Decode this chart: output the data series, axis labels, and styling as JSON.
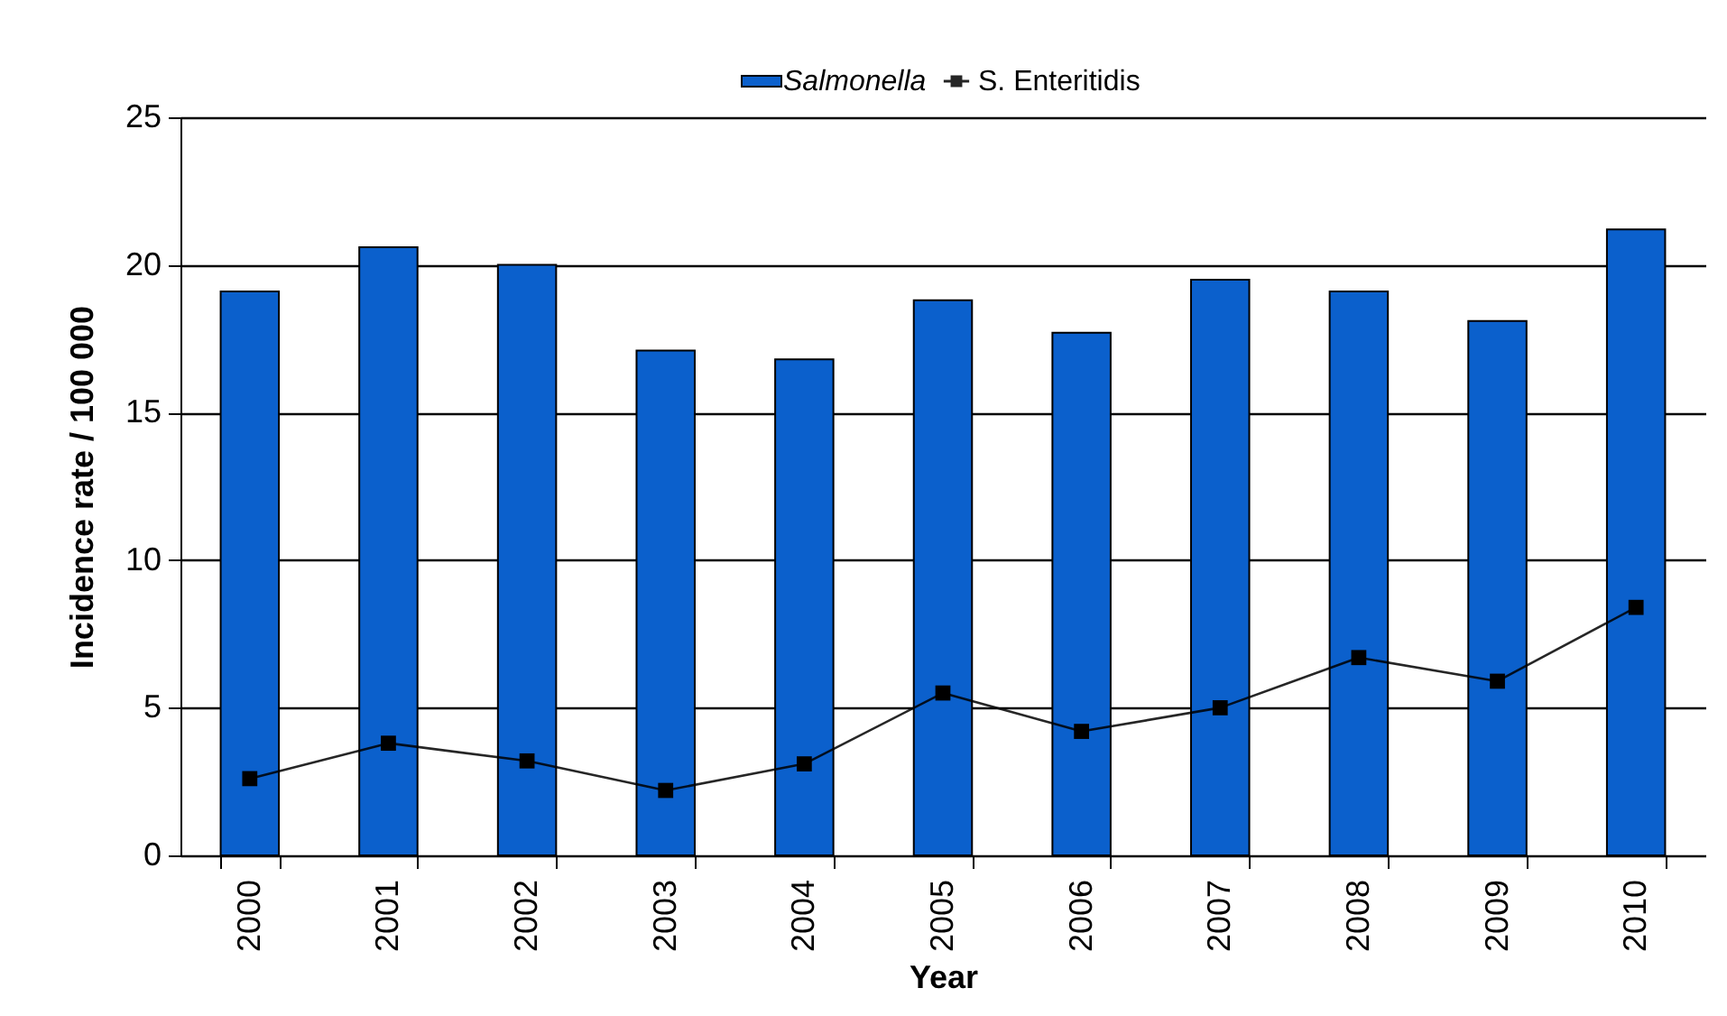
{
  "chart_data": {
    "type": "bar",
    "xlabel": "Year",
    "ylabel": "Incidence rate / 100 000",
    "categories": [
      "2000",
      "2001",
      "2002",
      "2003",
      "2004",
      "2005",
      "2006",
      "2007",
      "2008",
      "2009",
      "2010"
    ],
    "series": [
      {
        "name": "Salmonella",
        "color": "#0b60cc",
        "values": [
          19.1,
          20.6,
          20.0,
          17.1,
          16.8,
          18.8,
          17.7,
          19.5,
          19.1,
          18.1,
          21.2
        ]
      },
      {
        "name": "S. Enteritidis",
        "type": "line",
        "color": "#000000",
        "marker": "square",
        "values": [
          2.6,
          3.8,
          3.2,
          2.2,
          3.1,
          5.5,
          4.2,
          5.0,
          6.7,
          5.9,
          8.4
        ]
      }
    ],
    "ylim": [
      0,
      25
    ],
    "yticks": [
      0,
      5,
      10,
      15,
      20,
      25
    ],
    "grid": "y",
    "legend": "top"
  }
}
